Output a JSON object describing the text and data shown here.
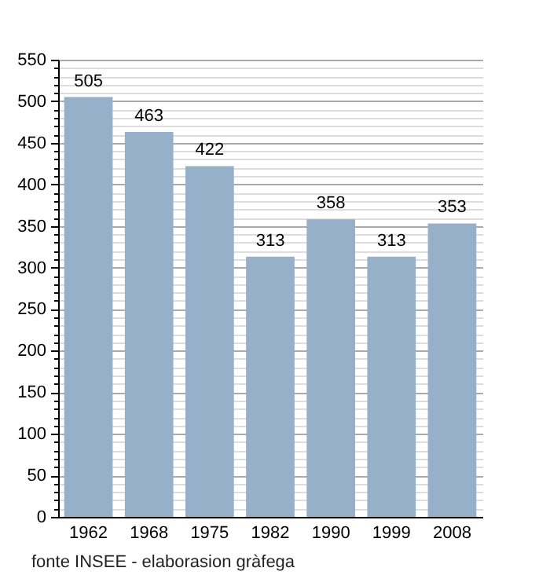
{
  "chart_data": {
    "type": "bar",
    "categories": [
      "1962",
      "1968",
      "1975",
      "1982",
      "1990",
      "1999",
      "2008"
    ],
    "values": [
      505,
      463,
      422,
      313,
      358,
      313,
      353
    ],
    "color": "#97b0c9",
    "data_labels": true,
    "grid": "y",
    "ylim": [
      0,
      550
    ],
    "yticks": [
      0,
      {
        "value": 10,
        "label": null
      },
      {
        "value": 20,
        "label": null
      },
      {
        "value": 30,
        "label": null
      },
      {
        "value": 40,
        "label": null
      },
      50,
      {
        "value": 60,
        "label": null
      },
      {
        "value": 70,
        "label": null
      },
      {
        "value": 80,
        "label": null
      },
      {
        "value": 90,
        "label": null
      },
      100,
      {
        "value": 110,
        "label": null
      },
      {
        "value": 120,
        "label": null
      },
      {
        "value": 130,
        "label": null
      },
      {
        "value": 140,
        "label": null
      },
      150,
      {
        "value": 160,
        "label": null
      },
      {
        "value": 170,
        "label": null
      },
      {
        "value": 180,
        "label": null
      },
      {
        "value": 190,
        "label": null
      },
      200,
      {
        "value": 210,
        "label": null
      },
      {
        "value": 220,
        "label": null
      },
      {
        "value": 230,
        "label": null
      },
      {
        "value": 240,
        "label": null
      },
      250,
      {
        "value": 260,
        "label": null
      },
      {
        "value": 270,
        "label": null
      },
      {
        "value": 280,
        "label": null
      },
      {
        "value": 290,
        "label": null
      },
      300,
      {
        "value": 310,
        "label": null
      },
      {
        "value": 320,
        "label": null
      },
      {
        "value": 330,
        "label": null
      },
      {
        "value": 340,
        "label": null
      },
      350,
      {
        "value": 360,
        "label": null
      },
      {
        "value": 370,
        "label": null
      },
      {
        "value": 380,
        "label": null
      },
      {
        "value": 390,
        "label": null
      },
      400,
      {
        "value": 410,
        "label": null
      },
      {
        "value": 420,
        "label": null
      },
      {
        "value": 430,
        "label": null
      },
      {
        "value": 440,
        "label": null
      },
      450,
      {
        "value": 460,
        "label": null
      },
      {
        "value": 470,
        "label": null
      },
      {
        "value": 480,
        "label": null
      },
      {
        "value": 490,
        "label": null
      },
      500,
      {
        "value": 510,
        "label": null
      },
      {
        "value": 520,
        "label": null
      },
      {
        "value": 530,
        "label": null
      },
      {
        "value": 540,
        "label": null
      },
      550
    ],
    "annotations": [
      "fonte INSEE - elaborasion gràfega"
    ]
  }
}
